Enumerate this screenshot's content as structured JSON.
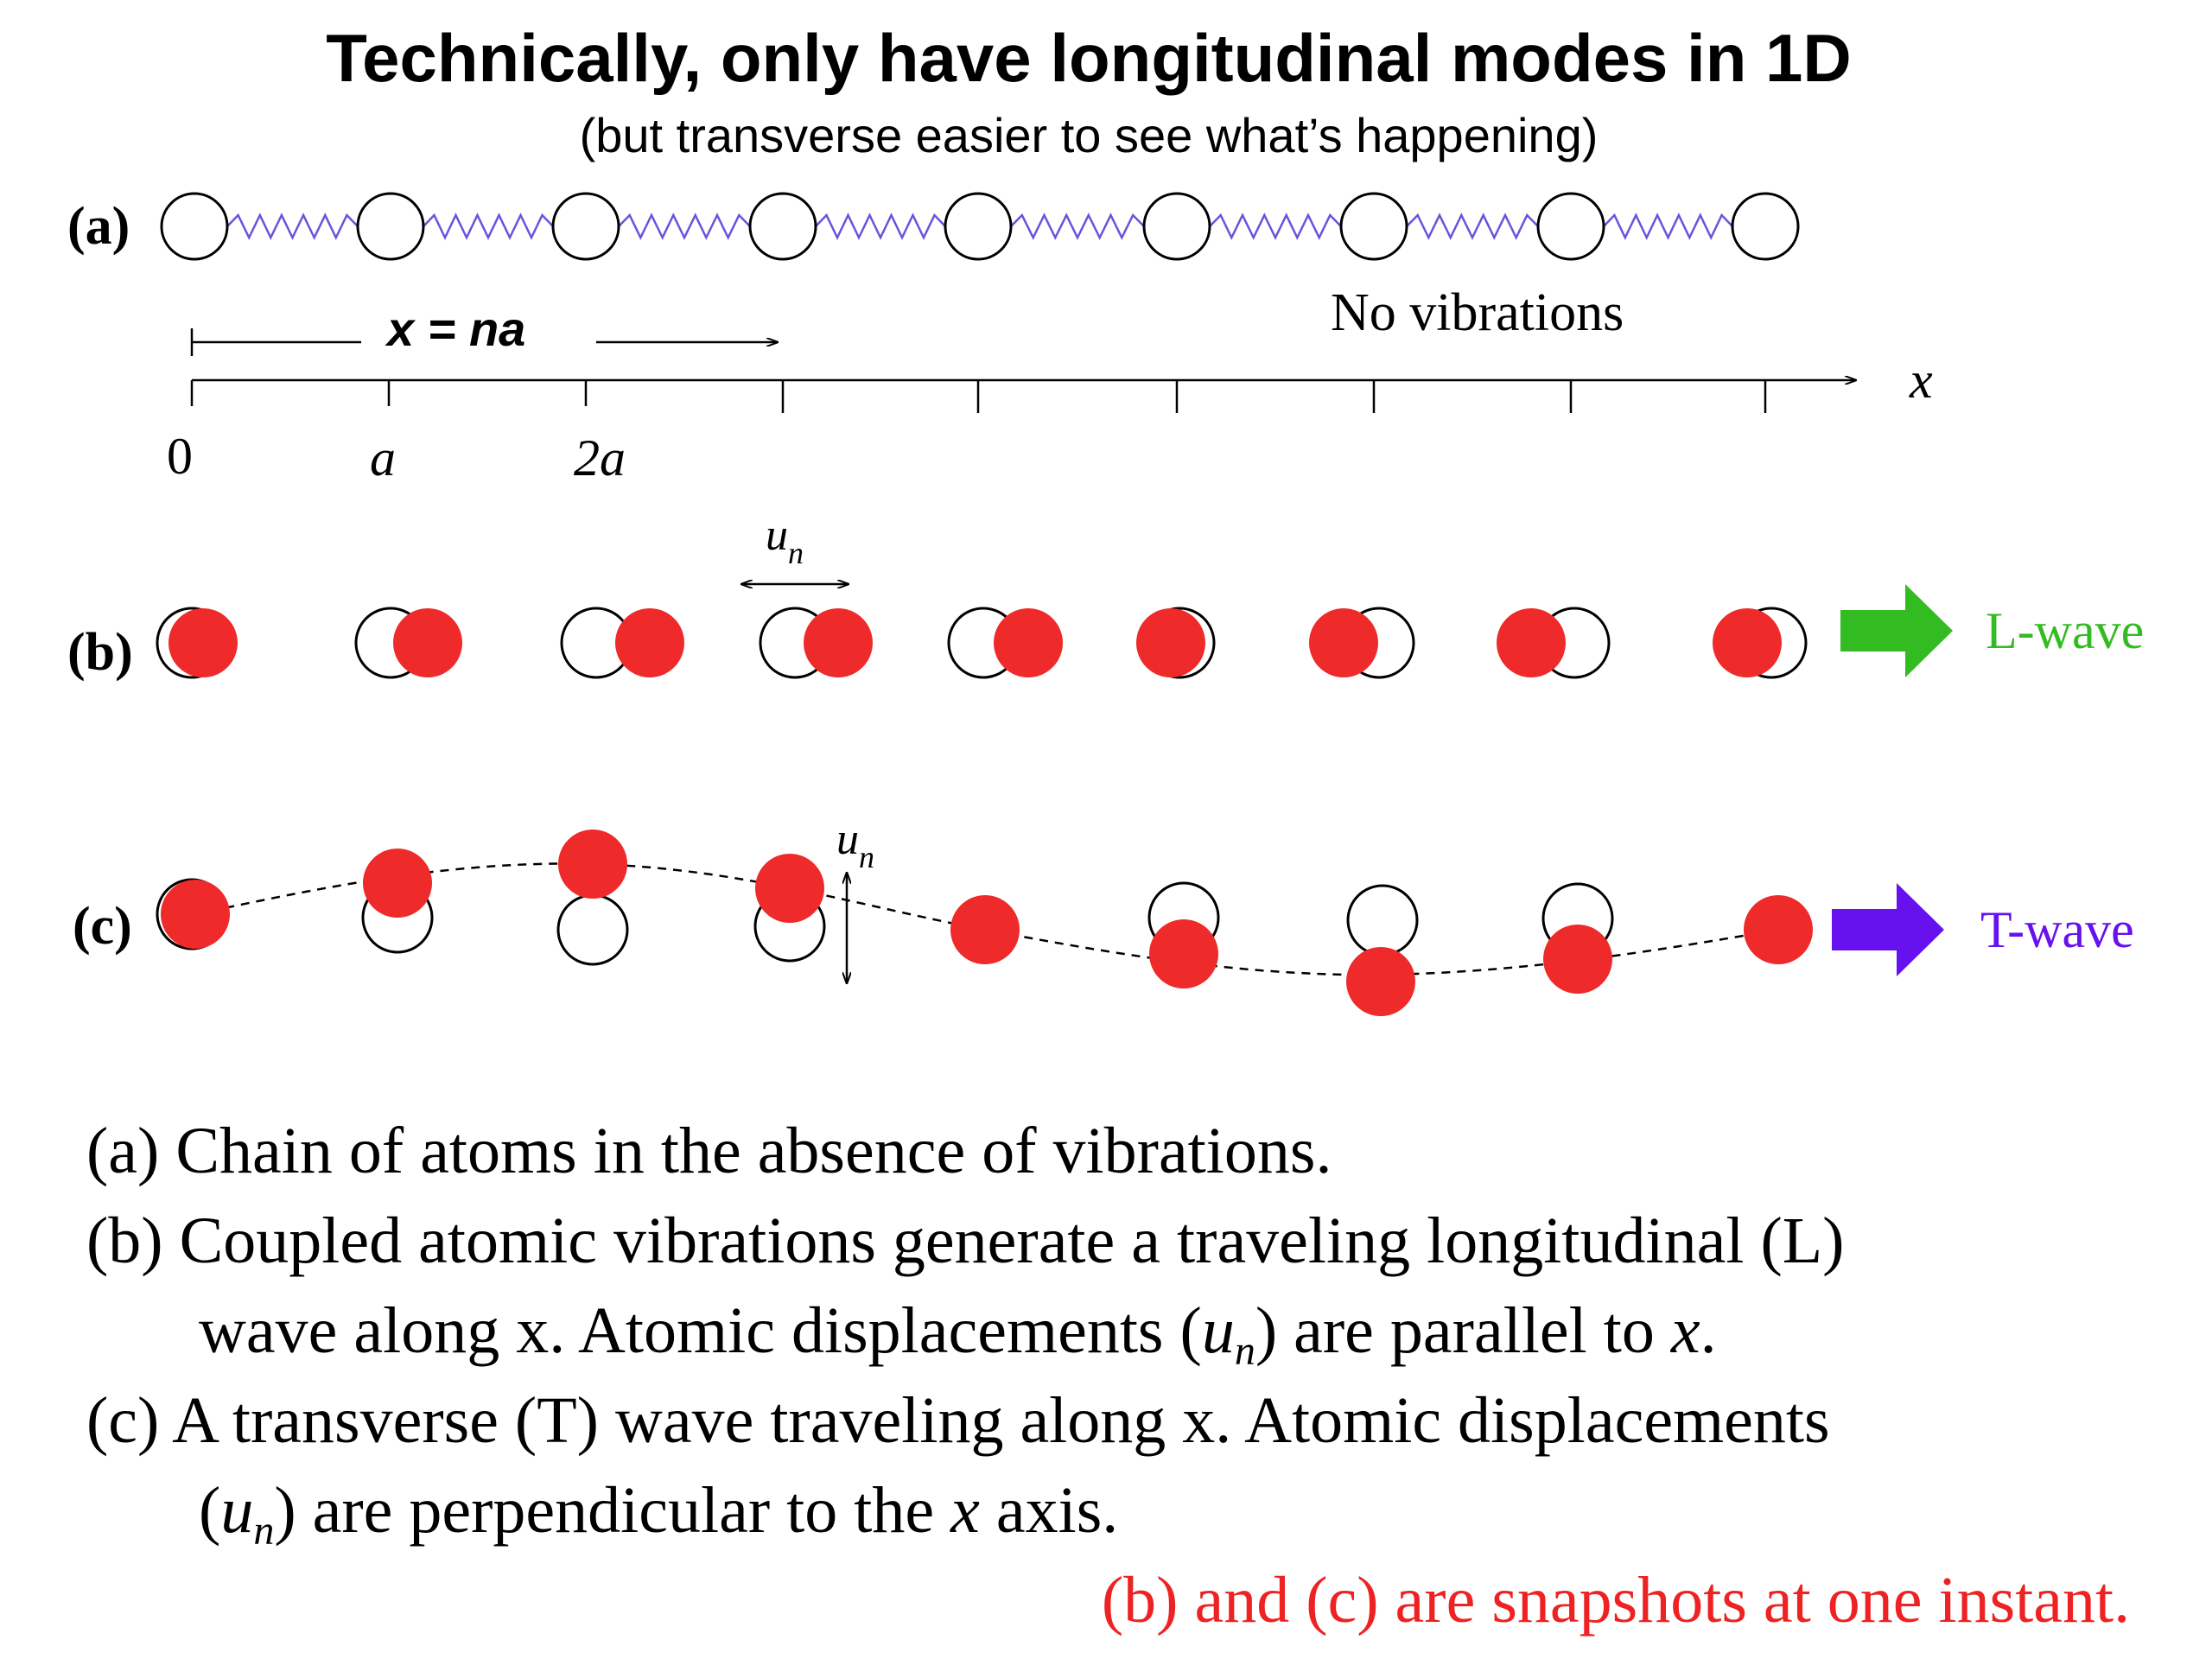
{
  "title": "Technically, only have longitudinal modes in 1D",
  "subtitle": "(but transverse easier to see what’s happening)",
  "panels": {
    "a": {
      "label": "(a)",
      "state_label": "No vibrations",
      "position_formula": "x = na",
      "axis_label": "x",
      "tick_labels": [
        "0",
        "a",
        "2a"
      ]
    },
    "b": {
      "label": "(b)",
      "displacement_label": "u",
      "displacement_sub": "n",
      "wave_label": "L-wave",
      "wave_color": "#33bb22"
    },
    "c": {
      "label": "(c)",
      "displacement_label": "u",
      "displacement_sub": "n",
      "wave_label": "T-wave",
      "wave_color": "#6611ee"
    }
  },
  "colors": {
    "atom_displaced": "#ee2a2a",
    "spring": "#6655dd",
    "note": "#ee2222"
  },
  "caption": {
    "a": "(a) Chain of atoms in the absence of vibrations.",
    "b1": "(b) Coupled atomic vibrations generate a traveling longitudinal (L)",
    "b2_pre": "wave along x. Atomic displacements (",
    "b2_var": "u",
    "b2_sub": "n",
    "b2_mid": ") are parallel to ",
    "b2_x": "x",
    "b2_end": ".",
    "c1": "(c) A transverse (T) wave traveling along x. Atomic displacements",
    "c2_pre": "(",
    "c2_var": "u",
    "c2_sub": "n",
    "c2_mid": ") are perpendicular to the ",
    "c2_x": "x",
    "c2_end": " axis.",
    "note": "(b) and (c) are snapshots at one instant."
  }
}
